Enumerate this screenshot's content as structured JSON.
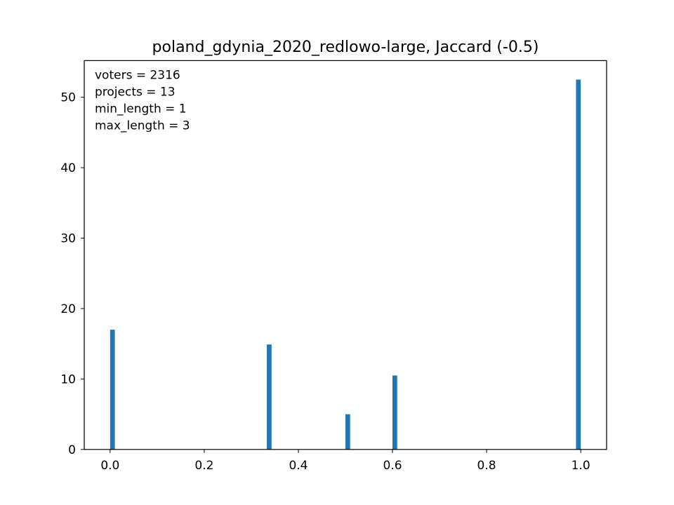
{
  "chart_data": {
    "type": "bar",
    "title": "poland_gdynia_2020_redlowo-large, Jaccard (-0.5)",
    "xlabel": "",
    "ylabel": "",
    "xlim": [
      -0.055,
      1.055
    ],
    "ylim": [
      0,
      55.2
    ],
    "xticks": [
      0.0,
      0.2,
      0.4,
      0.6,
      0.8,
      1.0
    ],
    "xtick_labels": [
      "0.0",
      "0.2",
      "0.4",
      "0.6",
      "0.8",
      "1.0"
    ],
    "yticks": [
      0,
      10,
      20,
      30,
      40,
      50
    ],
    "ytick_labels": [
      "0",
      "10",
      "20",
      "30",
      "40",
      "50"
    ],
    "bar_width": 0.01,
    "bar_color": "#1f77b4",
    "grid": false,
    "bars": [
      {
        "x": 0.005,
        "value": 17.0
      },
      {
        "x": 0.338,
        "value": 14.9
      },
      {
        "x": 0.505,
        "value": 5.0
      },
      {
        "x": 0.605,
        "value": 10.5
      },
      {
        "x": 0.995,
        "value": 52.5
      }
    ],
    "annotations": [
      "voters = 2316",
      "projects = 13",
      "min_length = 1",
      "max_length = 3"
    ]
  }
}
